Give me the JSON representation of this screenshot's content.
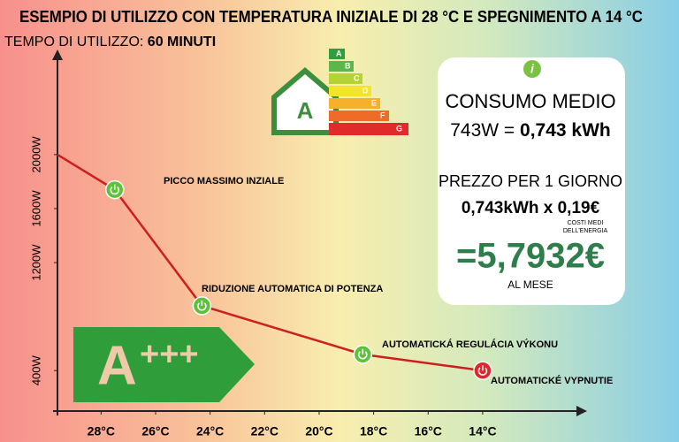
{
  "chart_data": {
    "type": "line",
    "title": "ESEMPIO DI UTILIZZO CON TEMPERATURA INIZIALE DI 28 °C E SPEGNIMENTO A 14 °C",
    "subtitle": [
      "TEMPO DI UTILIZZO:",
      "60 MINUTI"
    ],
    "x": [
      29.6,
      27.5,
      24.3,
      18.4,
      14
    ],
    "values": [
      2000,
      1740,
      880,
      520,
      400
    ],
    "color": "#cc1f1f",
    "marker_colors": [
      "#5cc23a",
      "#5cc23a",
      "#5cc23a",
      "#5cc23a",
      "#e0262b"
    ],
    "annotations": [
      null,
      "PICCO MASSIMO INZIALE",
      "RIDUZIONE AUTOMATICA DI POTENZA",
      "AUTOMATICKÁ REGULÁCIA VÝKONU",
      "AUTOMATICKÉ VYPNUTIE"
    ],
    "xlim": [
      29.6,
      10.3
    ],
    "xticks": [
      {
        "value": 28,
        "label": "28°C"
      },
      {
        "value": 26,
        "label": "26°C"
      },
      {
        "value": 24,
        "label": "24°C"
      },
      {
        "value": 22,
        "label": "22°C"
      },
      {
        "value": 20,
        "label": "20°C"
      },
      {
        "value": 18,
        "label": "18°C"
      },
      {
        "value": 16,
        "label": "16°C"
      },
      {
        "value": 14,
        "label": "14°C"
      }
    ],
    "ylim": [
      100,
      2700
    ],
    "yticks": [
      {
        "value": 2000,
        "label": "2000W"
      },
      {
        "value": 1600,
        "label": "1600W"
      },
      {
        "value": 1200,
        "label": "1200W"
      },
      {
        "value": 400,
        "label": "400W"
      }
    ],
    "grid": false
  },
  "info_panel": {
    "icon": "i",
    "heading": "CONSUMO MEDIO",
    "consumption_plain": "743W =",
    "consumption_bold": "0,743 kWh",
    "price_heading": "PREZZO PER 1 GIORNO",
    "price_formula": "0,743kWh x 0,19€",
    "price_note": [
      "COSTI MEDI",
      "DELL'ENERGIA"
    ],
    "result": "=5,7932€",
    "result_period": "AL MESE"
  },
  "energy_label": {
    "house": "A",
    "grades": [
      "A",
      "B",
      "C",
      "D",
      "E",
      "F",
      "G"
    ]
  },
  "badge": {
    "letter": "A",
    "plus": "+++"
  }
}
